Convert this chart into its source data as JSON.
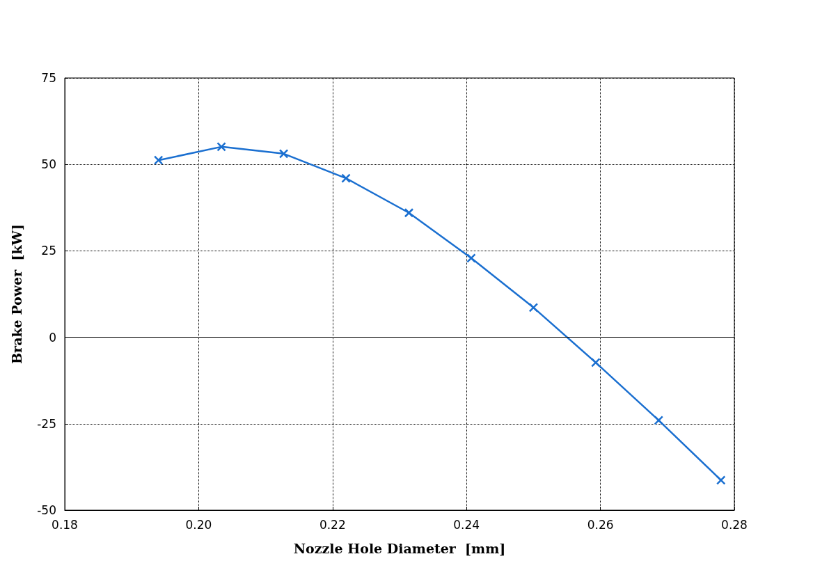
{
  "chart_data": {
    "type": "line",
    "xlabel": "Nozzle Hole Diameter  [mm]",
    "ylabel": "Brake Power  [kW]",
    "x": [
      0.194,
      0.2034,
      0.2127,
      0.222,
      0.2314,
      0.2407,
      0.25,
      0.2593,
      0.2687,
      0.278
    ],
    "series": [
      {
        "color": "#1a6fd0",
        "values": [
          51.2,
          55.1,
          53.1,
          46.0,
          36.0,
          22.9,
          8.6,
          -7.3,
          -24.0,
          -41.3
        ]
      }
    ],
    "xlim": [
      0.18,
      0.28
    ],
    "xticks": [
      {
        "value": 0.18,
        "label": "0.18"
      },
      {
        "value": 0.2,
        "label": "0.20"
      },
      {
        "value": 0.22,
        "label": "0.22"
      },
      {
        "value": 0.24,
        "label": "0.24"
      },
      {
        "value": 0.26,
        "label": "0.26"
      },
      {
        "value": 0.28,
        "label": "0.28"
      }
    ],
    "ylim": [
      -50,
      75
    ],
    "yticks": [
      -50,
      -25,
      0,
      25,
      50,
      75
    ],
    "ref_lines": [
      {
        "axis": "y",
        "value": 0,
        "color": "#000000",
        "line_style": "solid"
      }
    ],
    "grid": true,
    "marker": "cross",
    "line_style": "solid"
  }
}
